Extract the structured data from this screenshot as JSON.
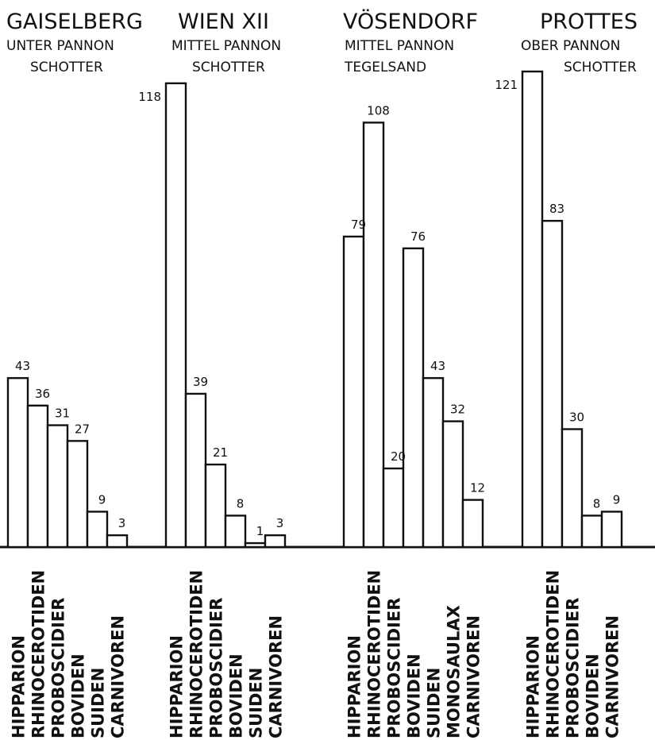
{
  "chart_data": {
    "type": "bar",
    "ylim": [
      0,
      125
    ],
    "grid": false,
    "groups": [
      {
        "name": "GAISELBERG",
        "subtitle_1": "UNTER PANNON",
        "subtitle_2": "SCHOTTER",
        "categories": [
          "HIPPARION",
          "RHINOCEROTIDEN",
          "PROBOSCIDIER",
          "BOVIDEN",
          "SUIDEN",
          "CARNIVOREN"
        ],
        "values": [
          43,
          36,
          31,
          27,
          9,
          3
        ],
        "value_labels": [
          "43",
          "36",
          "31",
          "27",
          "9",
          "3"
        ]
      },
      {
        "name": "WIEN XII",
        "subtitle_1": "MITTEL PANNON",
        "subtitle_2": "SCHOTTER",
        "categories": [
          "HIPPARION",
          "RHINOCEROTIDEN",
          "PROBOSCIDIER",
          "BOVIDEN",
          "SUIDEN",
          "CARNIVOREN"
        ],
        "values": [
          118,
          39,
          21,
          8,
          1,
          3
        ],
        "value_labels": [
          "118",
          "39",
          "21",
          "8",
          "1",
          "3"
        ]
      },
      {
        "name": "VÖSENDORF",
        "subtitle_1": "MITTEL PANNON",
        "subtitle_2": "TEGELSAND",
        "categories": [
          "HIPPARION",
          "RHINOCEROTIDEN",
          "PROBOSCIDIER",
          "BOVIDEN",
          "SUIDEN",
          "MONOSAULAX",
          "CARNIVOREN"
        ],
        "values": [
          79,
          108,
          20,
          76,
          43,
          32,
          12
        ],
        "value_labels": [
          "79",
          "108",
          "20",
          "76",
          "43",
          "32",
          "12"
        ]
      },
      {
        "name": "PROTTES",
        "subtitle_1": "OBER PANNON",
        "subtitle_2": "SCHOTTER",
        "categories": [
          "HIPPARION",
          "RHINOCEROTIDEN",
          "PROBOSCIDIER",
          "BOVIDEN",
          "CARNIVOREN"
        ],
        "values": [
          121,
          83,
          30,
          8,
          9
        ],
        "value_labels": [
          "121",
          "83",
          "30",
          "8",
          "9"
        ]
      }
    ]
  }
}
